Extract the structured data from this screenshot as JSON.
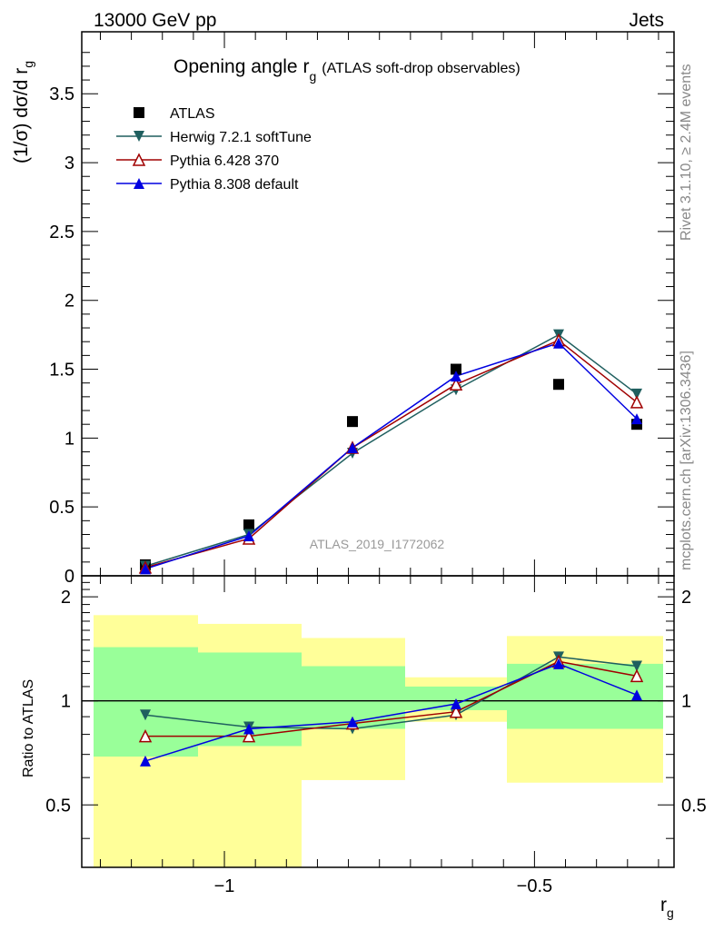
{
  "header": {
    "left": "13000 GeV pp",
    "right": "Jets"
  },
  "title": {
    "main": "Opening angle r",
    "sub": "g",
    "suffix": "(ATLAS soft-drop observables)"
  },
  "ylabel_main": {
    "prefix": "(1/σ) dσ/d r",
    "sub": "g"
  },
  "ylabel_ratio": "Ratio to ATLAS",
  "xlabel": {
    "main": "r",
    "sub": "g"
  },
  "side_text": {
    "rivet": "Rivet 3.1.10, ≥ 2.4M events",
    "mcplots": "mcplots.cern.ch [arXiv:1306.3436]"
  },
  "watermark": "ATLAS_2019_I1772062",
  "colors": {
    "atlas": "#000000",
    "herwig": "#1f5f5f",
    "pythia6": "#a00000",
    "pythia8": "#0000e0",
    "band_inner": "#99ff99",
    "band_outer": "#ffff99"
  },
  "chart_data": {
    "type": "line",
    "x_scale": "log10",
    "xlim": [
      -1.23,
      -0.275
    ],
    "x_ticks": [
      {
        "value": -1,
        "label": "−1"
      },
      {
        "value": -0.5,
        "label": "−0.5"
      }
    ],
    "bin_edges": [
      -1.2,
      -1.0,
      -0.8,
      -0.6,
      -0.4,
      -0.3
    ],
    "main_panel": {
      "ylim": [
        0,
        3.95
      ],
      "y_ticks": [
        {
          "value": 0,
          "label": "0"
        },
        {
          "value": 0.5,
          "label": "0.5"
        },
        {
          "value": 1,
          "label": "1"
        },
        {
          "value": 1.5,
          "label": "1.5"
        },
        {
          "value": 2,
          "label": "2"
        },
        {
          "value": 2.5,
          "label": "2.5"
        },
        {
          "value": 3,
          "label": "3"
        },
        {
          "value": 3.5,
          "label": "3.5"
        }
      ],
      "x": [
        -1.1,
        -0.9,
        -0.7,
        -0.5,
        -0.3,
        -0.15
      ],
      "series": [
        {
          "name": "ATLAS",
          "key": "atlas",
          "marker": "square",
          "values": [
            0.08,
            0.37,
            1.12,
            1.5,
            1.39,
            1.1
          ]
        },
        {
          "name": "Herwig 7.2.1 softTune",
          "key": "herwig",
          "marker": "triangle-down",
          "values": [
            0.07,
            0.3,
            0.89,
            1.35,
            1.75,
            1.32
          ]
        },
        {
          "name": "Pythia 6.428 370",
          "key": "pythia6",
          "marker": "triangle-up-open",
          "values": [
            0.06,
            0.27,
            0.93,
            1.39,
            1.71,
            1.26
          ]
        },
        {
          "name": "Pythia 8.308 default",
          "key": "pythia8",
          "marker": "triangle-up",
          "values": [
            0.05,
            0.29,
            0.93,
            1.45,
            1.69,
            1.14
          ]
        }
      ]
    },
    "ratio_panel": {
      "ylim": [
        0.33,
        2.3
      ],
      "y_scale": "log",
      "y_ticks": [
        {
          "value": 0.5,
          "label": "0.5"
        },
        {
          "value": 1,
          "label": "1"
        },
        {
          "value": 2,
          "label": "2"
        }
      ],
      "bands": [
        {
          "inner": [
            0.69,
            1.43
          ],
          "outer": [
            0.33,
            1.77
          ]
        },
        {
          "inner": [
            0.74,
            1.38
          ],
          "outer": [
            0.33,
            1.67
          ]
        },
        {
          "inner": [
            0.83,
            1.26
          ],
          "outer": [
            0.59,
            1.52
          ]
        },
        {
          "inner": [
            0.94,
            1.1
          ],
          "outer": [
            0.87,
            1.17
          ]
        },
        {
          "inner": [
            0.83,
            1.28
          ],
          "outer": [
            0.58,
            1.54
          ]
        },
        {
          "inner": [
            0.83,
            1.28
          ],
          "outer": [
            0.58,
            1.54
          ]
        }
      ],
      "series": [
        {
          "name": "Herwig 7.2.1 softTune",
          "key": "herwig",
          "marker": "triangle-down",
          "values": [
            0.91,
            0.84,
            0.83,
            0.91,
            1.34,
            1.26
          ]
        },
        {
          "name": "Pythia 6.428 370",
          "key": "pythia6",
          "marker": "triangle-up-open",
          "values": [
            0.79,
            0.79,
            0.86,
            0.93,
            1.3,
            1.18
          ]
        },
        {
          "name": "Pythia 8.308 default",
          "key": "pythia8",
          "marker": "triangle-up",
          "values": [
            0.67,
            0.83,
            0.87,
            0.98,
            1.28,
            1.04
          ]
        }
      ]
    },
    "legend": {
      "placement": "top-left"
    }
  }
}
